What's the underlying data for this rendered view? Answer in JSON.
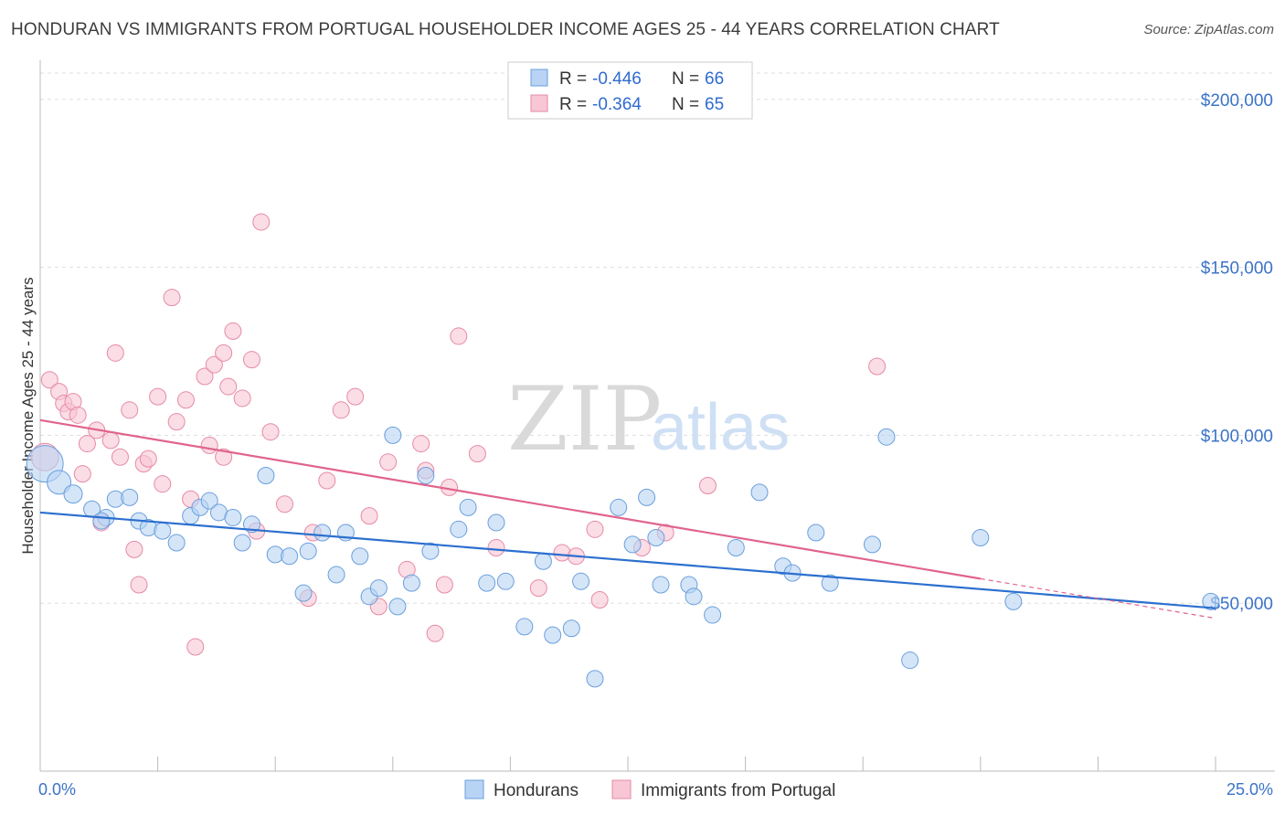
{
  "title": "HONDURAN VS IMMIGRANTS FROM PORTUGAL HOUSEHOLDER INCOME AGES 25 - 44 YEARS CORRELATION CHART",
  "source": "Source: ZipAtlas.com",
  "watermark": {
    "part1": "ZIP",
    "part2": "atlas"
  },
  "colors": {
    "blue_fill": "#b8d3f4",
    "blue_stroke": "#6a9fdc",
    "blue_line": "#2c6fcf",
    "pink_fill": "#f8c6d4",
    "pink_stroke": "#e68aa6",
    "pink_line": "#e0648c",
    "axis_text": "#3b73c7",
    "grid": "#dddddd"
  },
  "legend": {
    "rows": [
      {
        "r_label": "R = ",
        "r_value": "-0.446",
        "n_label": "N = ",
        "n_value": "66"
      },
      {
        "r_label": "R = ",
        "r_value": "-0.364",
        "n_label": "N = ",
        "n_value": "65"
      }
    ]
  },
  "chart_data": {
    "type": "scatter",
    "xlabel": "",
    "ylabel": "Householder Income Ages 25 - 44 years",
    "xlim": [
      0,
      25
    ],
    "ylim": [
      0,
      210000
    ],
    "x_tick_labels": [
      "0.0%",
      "25.0%"
    ],
    "y_ticks": [
      {
        "value": 50000,
        "label": "$50,000"
      },
      {
        "value": 100000,
        "label": "$100,000"
      },
      {
        "value": 150000,
        "label": "$150,000"
      },
      {
        "value": 200000,
        "label": "$200,000"
      }
    ],
    "grid": "horizontal dashed",
    "legend_position": "top-center",
    "series": [
      {
        "name": "Hondurans",
        "r": -0.446,
        "n": 66,
        "trend": {
          "x": [
            0,
            25
          ],
          "y": [
            77000,
            48500
          ]
        },
        "points": [
          [
            0.1,
            91500,
            20
          ],
          [
            0.4,
            86000,
            13
          ],
          [
            0.7,
            82500,
            10
          ],
          [
            1.1,
            78000,
            9
          ],
          [
            1.4,
            75500,
            9
          ],
          [
            1.6,
            81000,
            9
          ],
          [
            1.9,
            81500,
            9
          ],
          [
            2.1,
            74500,
            9
          ],
          [
            2.3,
            72500,
            9
          ],
          [
            2.6,
            71500,
            9
          ],
          [
            2.9,
            68000,
            9
          ],
          [
            3.2,
            76000,
            9
          ],
          [
            3.4,
            78500,
            9
          ],
          [
            3.6,
            80500,
            9
          ],
          [
            3.8,
            77000,
            9
          ],
          [
            4.1,
            75500,
            9
          ],
          [
            4.3,
            68000,
            9
          ],
          [
            4.5,
            73500,
            9
          ],
          [
            4.8,
            88000,
            9
          ],
          [
            5.0,
            64500,
            9
          ],
          [
            5.3,
            64000,
            9
          ],
          [
            5.6,
            53000,
            9
          ],
          [
            5.7,
            65500,
            9
          ],
          [
            6.0,
            71000,
            9
          ],
          [
            6.3,
            58500,
            9
          ],
          [
            6.5,
            71000,
            9
          ],
          [
            6.8,
            64000,
            9
          ],
          [
            7.0,
            52000,
            9
          ],
          [
            7.2,
            54500,
            9
          ],
          [
            7.5,
            100000,
            9
          ],
          [
            7.6,
            49000,
            9
          ],
          [
            7.9,
            56000,
            9
          ],
          [
            8.2,
            88000,
            9
          ],
          [
            8.3,
            65500,
            9
          ],
          [
            8.9,
            72000,
            9
          ],
          [
            9.1,
            78500,
            9
          ],
          [
            9.5,
            56000,
            9
          ],
          [
            9.7,
            74000,
            9
          ],
          [
            9.9,
            56500,
            9
          ],
          [
            10.3,
            43000,
            9
          ],
          [
            10.7,
            62500,
            9
          ],
          [
            10.9,
            40500,
            9
          ],
          [
            11.3,
            42500,
            9
          ],
          [
            11.5,
            56500,
            9
          ],
          [
            11.8,
            27500,
            9
          ],
          [
            12.3,
            78500,
            9
          ],
          [
            12.6,
            67500,
            9
          ],
          [
            12.9,
            81500,
            9
          ],
          [
            13.1,
            69500,
            9
          ],
          [
            13.2,
            55500,
            9
          ],
          [
            13.8,
            55500,
            9
          ],
          [
            13.9,
            52000,
            9
          ],
          [
            14.3,
            46500,
            9
          ],
          [
            14.8,
            66500,
            9
          ],
          [
            15.3,
            83000,
            9
          ],
          [
            15.8,
            61000,
            9
          ],
          [
            16.0,
            59000,
            9
          ],
          [
            16.5,
            71000,
            9
          ],
          [
            16.8,
            56000,
            9
          ],
          [
            17.7,
            67500,
            9
          ],
          [
            18.0,
            99500,
            9
          ],
          [
            18.5,
            33000,
            9
          ],
          [
            20.0,
            69500,
            9
          ],
          [
            20.7,
            50500,
            9
          ],
          [
            24.9,
            50500,
            9
          ],
          [
            1.3,
            74500,
            9
          ]
        ]
      },
      {
        "name": "Immigrants from Portugal",
        "r": -0.364,
        "n": 65,
        "trend": {
          "x": [
            0,
            25
          ],
          "y": [
            104500,
            45500
          ]
        },
        "trend_solid_to_x": 20.0,
        "points": [
          [
            0.1,
            93500,
            15
          ],
          [
            0.2,
            116500,
            9
          ],
          [
            0.4,
            113000,
            9
          ],
          [
            0.5,
            109500,
            9
          ],
          [
            0.6,
            107000,
            9
          ],
          [
            0.7,
            110000,
            9
          ],
          [
            0.8,
            106000,
            9
          ],
          [
            0.9,
            88500,
            9
          ],
          [
            1.0,
            97500,
            9
          ],
          [
            1.2,
            101500,
            9
          ],
          [
            1.3,
            74000,
            9
          ],
          [
            1.5,
            98500,
            9
          ],
          [
            1.6,
            124500,
            9
          ],
          [
            1.7,
            93500,
            9
          ],
          [
            1.9,
            107500,
            9
          ],
          [
            2.0,
            66000,
            9
          ],
          [
            2.1,
            55500,
            9
          ],
          [
            2.2,
            91500,
            9
          ],
          [
            2.3,
            93000,
            9
          ],
          [
            2.5,
            111500,
            9
          ],
          [
            2.6,
            85500,
            9
          ],
          [
            2.8,
            141000,
            9
          ],
          [
            2.9,
            104000,
            9
          ],
          [
            3.1,
            110500,
            9
          ],
          [
            3.2,
            81000,
            9
          ],
          [
            3.3,
            37000,
            9
          ],
          [
            3.5,
            117500,
            9
          ],
          [
            3.7,
            121000,
            9
          ],
          [
            3.6,
            97000,
            9
          ],
          [
            3.9,
            124500,
            9
          ],
          [
            4.0,
            114500,
            9
          ],
          [
            3.9,
            93500,
            9
          ],
          [
            4.1,
            131000,
            9
          ],
          [
            4.3,
            111000,
            9
          ],
          [
            4.5,
            122500,
            9
          ],
          [
            4.6,
            71500,
            9
          ],
          [
            4.7,
            163500,
            9
          ],
          [
            4.9,
            101000,
            9
          ],
          [
            5.2,
            79500,
            9
          ],
          [
            5.7,
            51500,
            9
          ],
          [
            5.8,
            71000,
            9
          ],
          [
            6.1,
            86500,
            9
          ],
          [
            6.4,
            107500,
            9
          ],
          [
            6.7,
            111500,
            9
          ],
          [
            7.0,
            76000,
            9
          ],
          [
            7.2,
            49000,
            9
          ],
          [
            7.4,
            92000,
            9
          ],
          [
            7.8,
            60000,
            9
          ],
          [
            8.1,
            97500,
            9
          ],
          [
            8.2,
            89500,
            9
          ],
          [
            8.4,
            41000,
            9
          ],
          [
            8.6,
            55500,
            9
          ],
          [
            8.7,
            84500,
            9
          ],
          [
            8.9,
            129500,
            9
          ],
          [
            9.3,
            94500,
            9
          ],
          [
            9.7,
            66500,
            9
          ],
          [
            10.6,
            54500,
            9
          ],
          [
            11.1,
            65000,
            9
          ],
          [
            11.4,
            64000,
            9
          ],
          [
            11.8,
            72000,
            9
          ],
          [
            11.9,
            51000,
            9
          ],
          [
            12.8,
            66500,
            9
          ],
          [
            13.3,
            71000,
            9
          ],
          [
            14.2,
            85000,
            9
          ],
          [
            17.8,
            120500,
            9
          ]
        ]
      }
    ]
  }
}
